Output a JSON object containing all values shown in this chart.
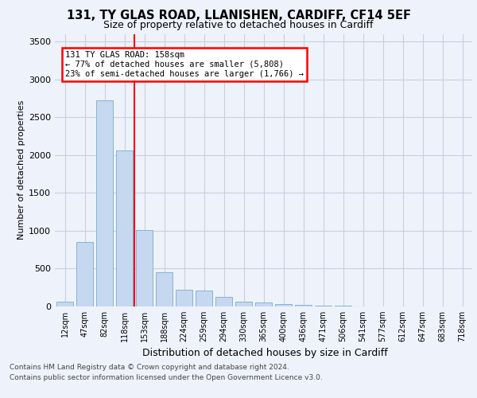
{
  "title_line1": "131, TY GLAS ROAD, LLANISHEN, CARDIFF, CF14 5EF",
  "title_line2": "Size of property relative to detached houses in Cardiff",
  "xlabel": "Distribution of detached houses by size in Cardiff",
  "ylabel": "Number of detached properties",
  "bar_labels": [
    "12sqm",
    "47sqm",
    "82sqm",
    "118sqm",
    "153sqm",
    "188sqm",
    "224sqm",
    "259sqm",
    "294sqm",
    "330sqm",
    "365sqm",
    "400sqm",
    "436sqm",
    "471sqm",
    "506sqm",
    "541sqm",
    "577sqm",
    "612sqm",
    "647sqm",
    "683sqm",
    "718sqm"
  ],
  "bar_values": [
    60,
    850,
    2720,
    2060,
    1010,
    450,
    220,
    210,
    130,
    65,
    55,
    30,
    25,
    10,
    10,
    5,
    5,
    2,
    2,
    1,
    1
  ],
  "bar_color": "#c5d8f0",
  "bar_edge_color": "#7aabcc",
  "vline_color": "red",
  "vline_position": 3.5,
  "annotation_text": "131 TY GLAS ROAD: 158sqm\n← 77% of detached houses are smaller (5,808)\n23% of semi-detached houses are larger (1,766) →",
  "annotation_box_color": "red",
  "annotation_text_color": "black",
  "ylim": [
    0,
    3600
  ],
  "yticks": [
    0,
    500,
    1000,
    1500,
    2000,
    2500,
    3000,
    3500
  ],
  "footer_line1": "Contains HM Land Registry data © Crown copyright and database right 2024.",
  "footer_line2": "Contains public sector information licensed under the Open Government Licence v3.0.",
  "bg_color": "#eef2fb",
  "plot_bg_color": "#eef2fb",
  "grid_color": "#c8cfe0"
}
